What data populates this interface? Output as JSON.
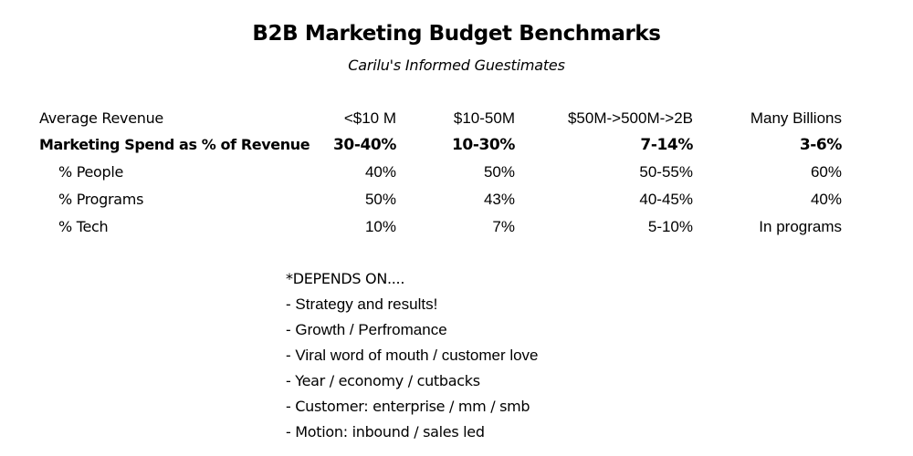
{
  "title": "B2B Marketing Budget Benchmarks",
  "subtitle": "Carilu's Informed Guestimates",
  "table": {
    "header": {
      "label": "Average Revenue",
      "cols": [
        "<$10 M",
        "$10-50M",
        "$50M->500M->2B",
        "Many Billions"
      ]
    },
    "rows": [
      {
        "label": "Marketing Spend as % of Revenue",
        "values": [
          "30-40%",
          "10-30%",
          "7-14%",
          "3-6%"
        ]
      },
      {
        "label": "% People",
        "values": [
          "40%",
          "50%",
          "50-55%",
          "60%"
        ]
      },
      {
        "label": "% Programs",
        "values": [
          "50%",
          "43%",
          "40-45%",
          "40%"
        ]
      },
      {
        "label": "% Tech",
        "values": [
          "10%",
          "7%",
          "5-10%",
          "In programs"
        ]
      }
    ]
  },
  "notes": {
    "heading": "*DEPENDS ON....",
    "items": [
      "- Strategy and results!",
      "- Growth / Perfromance",
      "- Viral word of mouth / customer love",
      "- Year / economy / cutbacks",
      "- Customer: enterprise / mm / smb",
      "- Motion: inbound / sales led"
    ]
  }
}
